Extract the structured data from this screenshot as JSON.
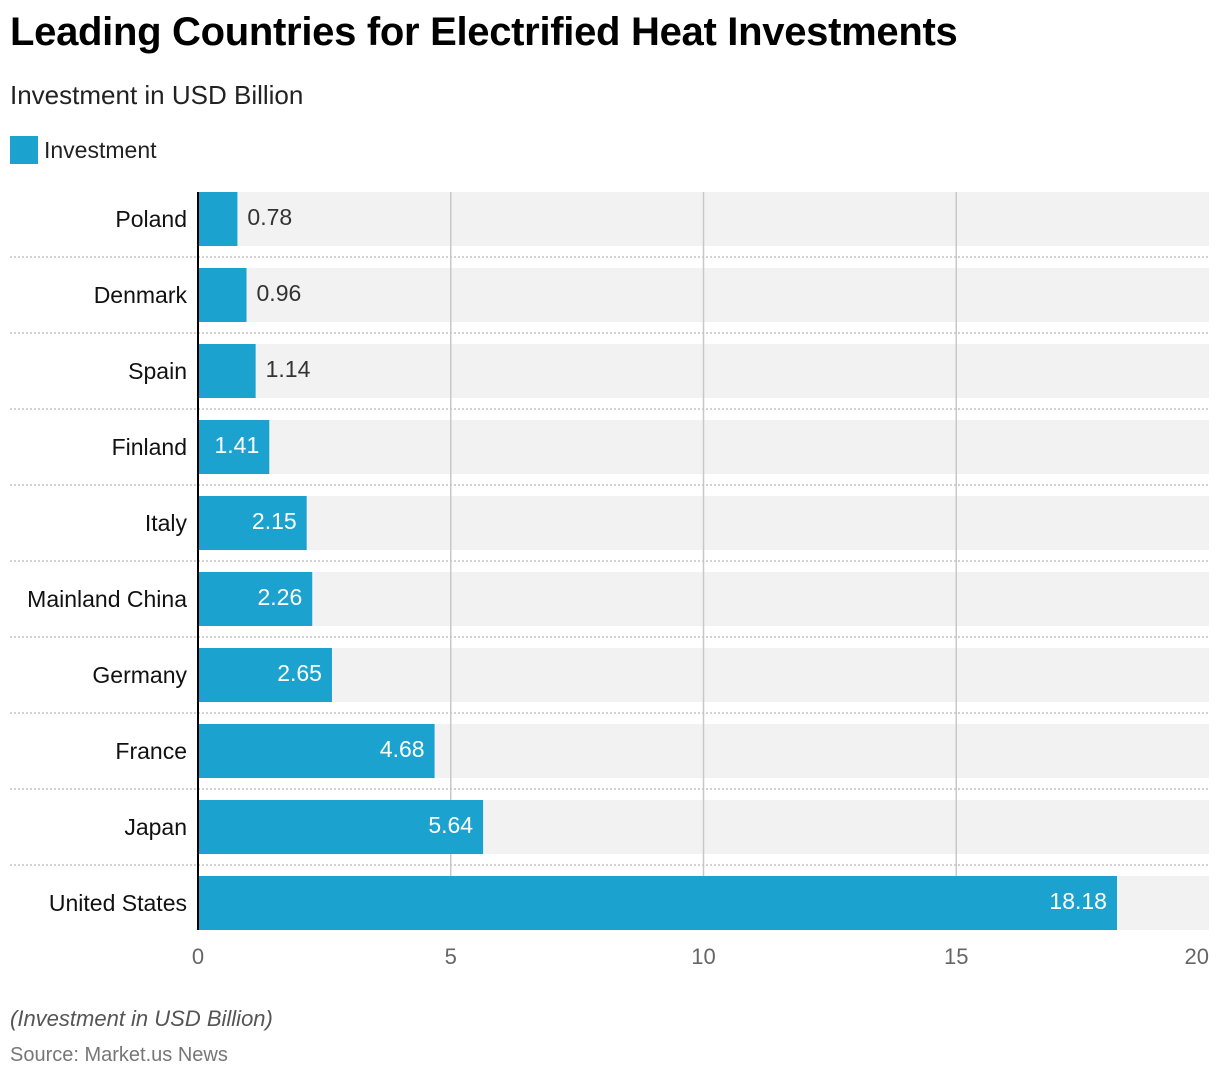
{
  "colors": {
    "bar": "#1ba2cf",
    "track": "#f2f2f2",
    "grid": "#c8c8c8",
    "separator": "#c4c4c4",
    "axis": "#000000",
    "label_inside": "#ffffff",
    "label_outside": "#333333"
  },
  "chart_data": {
    "type": "bar",
    "orientation": "horizontal",
    "title": "Leading Countries for Electrified Heat Investments",
    "subtitle": "Investment in USD Billion",
    "legend": [
      "Investment"
    ],
    "categories": [
      "Poland",
      "Denmark",
      "Spain",
      "Finland",
      "Italy",
      "Mainland China",
      "Germany",
      "France",
      "Japan",
      "United States"
    ],
    "series": [
      {
        "name": "Investment",
        "values": [
          0.78,
          0.96,
          1.14,
          1.41,
          2.15,
          2.26,
          2.65,
          4.68,
          5.64,
          18.18
        ]
      }
    ],
    "value_labels": [
      "0.78",
      "0.96",
      "1.14",
      "1.41",
      "2.15",
      "2.26",
      "2.65",
      "4.68",
      "5.64",
      "18.18"
    ],
    "xlim": [
      0,
      20
    ],
    "xticks": [
      0,
      5,
      10,
      15,
      20
    ],
    "xtick_labels": [
      "0",
      "5",
      "10",
      "15",
      "20"
    ],
    "xlabel": "",
    "ylabel": ""
  },
  "footnote": "(Investment in USD Billion)",
  "source": "Source: Market.us News"
}
